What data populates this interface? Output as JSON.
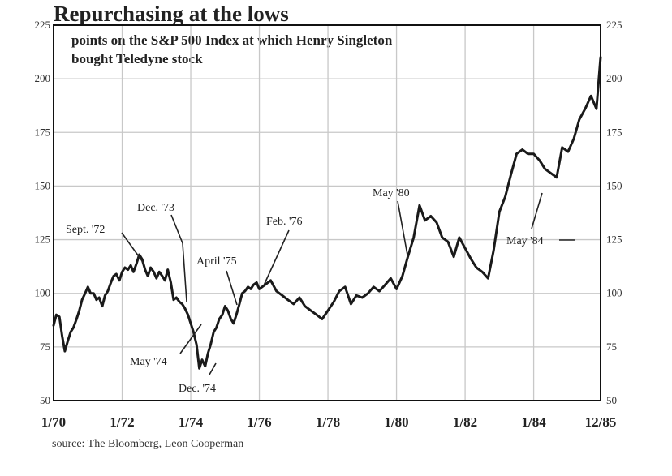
{
  "chart_data": {
    "type": "line",
    "title": "Repurchasing at the lows",
    "subtitle_lines": [
      "points on the S&P 500 Index at which Henry Singleton",
      "bought Teledyne stock"
    ],
    "source": "source: The Bloomberg, Leon Cooperman",
    "ylim": [
      50,
      225
    ],
    "y_ticks": [
      "50",
      "75",
      "100",
      "125",
      "150",
      "175",
      "200",
      "225"
    ],
    "xlim": [
      1970.0,
      1985.95
    ],
    "x_ticks": [
      {
        "value": 1970,
        "label": "1/70"
      },
      {
        "value": 1972,
        "label": "1/72"
      },
      {
        "value": 1974,
        "label": "1/74"
      },
      {
        "value": 1976,
        "label": "1/76"
      },
      {
        "value": 1978,
        "label": "1/78"
      },
      {
        "value": 1980,
        "label": "1/80"
      },
      {
        "value": 1982,
        "label": "1/82"
      },
      {
        "value": 1984,
        "label": "1/84"
      },
      {
        "value": 1985.95,
        "label": "12/85"
      }
    ],
    "grid": true,
    "series": [
      {
        "x": [
          1970.0,
          1970.08,
          1970.17,
          1970.25,
          1970.33,
          1970.42,
          1970.5,
          1970.58,
          1970.67,
          1970.75,
          1970.83,
          1970.92,
          1971.0,
          1971.08,
          1971.17,
          1971.25,
          1971.33,
          1971.42,
          1971.5,
          1971.58,
          1971.67,
          1971.75,
          1971.83,
          1971.92,
          1972.0,
          1972.08,
          1972.17,
          1972.25,
          1972.33,
          1972.42,
          1972.5,
          1972.58,
          1972.67,
          1972.75,
          1972.83,
          1972.92,
          1973.0,
          1973.08,
          1973.17,
          1973.25,
          1973.33,
          1973.42,
          1973.5,
          1973.58,
          1973.67,
          1973.75,
          1973.83,
          1973.92,
          1974.0,
          1974.08,
          1974.17,
          1974.25,
          1974.33,
          1974.42,
          1974.5,
          1974.58,
          1974.67,
          1974.75,
          1974.83,
          1974.92,
          1975.0,
          1975.08,
          1975.17,
          1975.25,
          1975.33,
          1975.42,
          1975.5,
          1975.58,
          1975.67,
          1975.75,
          1975.83,
          1975.92,
          1976.0,
          1976.17,
          1976.33,
          1976.5,
          1976.67,
          1976.83,
          1977.0,
          1977.17,
          1977.33,
          1977.5,
          1977.67,
          1977.83,
          1978.0,
          1978.17,
          1978.33,
          1978.5,
          1978.67,
          1978.83,
          1979.0,
          1979.17,
          1979.33,
          1979.5,
          1979.67,
          1979.83,
          1980.0,
          1980.17,
          1980.33,
          1980.5,
          1980.67,
          1980.83,
          1981.0,
          1981.17,
          1981.33,
          1981.5,
          1981.67,
          1981.83,
          1982.0,
          1982.17,
          1982.33,
          1982.5,
          1982.67,
          1982.83,
          1983.0,
          1983.17,
          1983.33,
          1983.5,
          1983.67,
          1983.83,
          1984.0,
          1984.17,
          1984.33,
          1984.5,
          1984.67,
          1984.83,
          1985.0,
          1985.17,
          1985.33,
          1985.5,
          1985.67,
          1985.83,
          1985.95
        ],
        "values": [
          85,
          90,
          89,
          80,
          73,
          78,
          82,
          84,
          88,
          92,
          97,
          100,
          103,
          100,
          100,
          97,
          98,
          94,
          99,
          101,
          105,
          108,
          109,
          106,
          110,
          112,
          111,
          113,
          110,
          114,
          118,
          116,
          111,
          108,
          112,
          110,
          107,
          110,
          108,
          106,
          111,
          105,
          97,
          98,
          96,
          95,
          93,
          90,
          86,
          82,
          76,
          65,
          69,
          66,
          72,
          76,
          82,
          84,
          88,
          90,
          94,
          92,
          88,
          86,
          90,
          95,
          100,
          101,
          103,
          102,
          104,
          105,
          102,
          104,
          106,
          101,
          99,
          97,
          95,
          98,
          94,
          92,
          90,
          88,
          92,
          96,
          101,
          103,
          95,
          99,
          98,
          100,
          103,
          101,
          104,
          107,
          102,
          108,
          117,
          126,
          141,
          134,
          136,
          133,
          126,
          124,
          117,
          126,
          121,
          116,
          112,
          110,
          107,
          120,
          138,
          145,
          155,
          165,
          167,
          165,
          165,
          162,
          158,
          156,
          154,
          168,
          166,
          172,
          181,
          186,
          192,
          186,
          210
        ]
      }
    ],
    "annotations": [
      {
        "label": "Sept. '72"
      },
      {
        "label": "Dec. '73"
      },
      {
        "label": "May '74"
      },
      {
        "label": "Dec. '74"
      },
      {
        "label": "April '75"
      },
      {
        "label": "Feb. '76"
      },
      {
        "label": "May '80"
      },
      {
        "label": "May '84"
      }
    ]
  }
}
